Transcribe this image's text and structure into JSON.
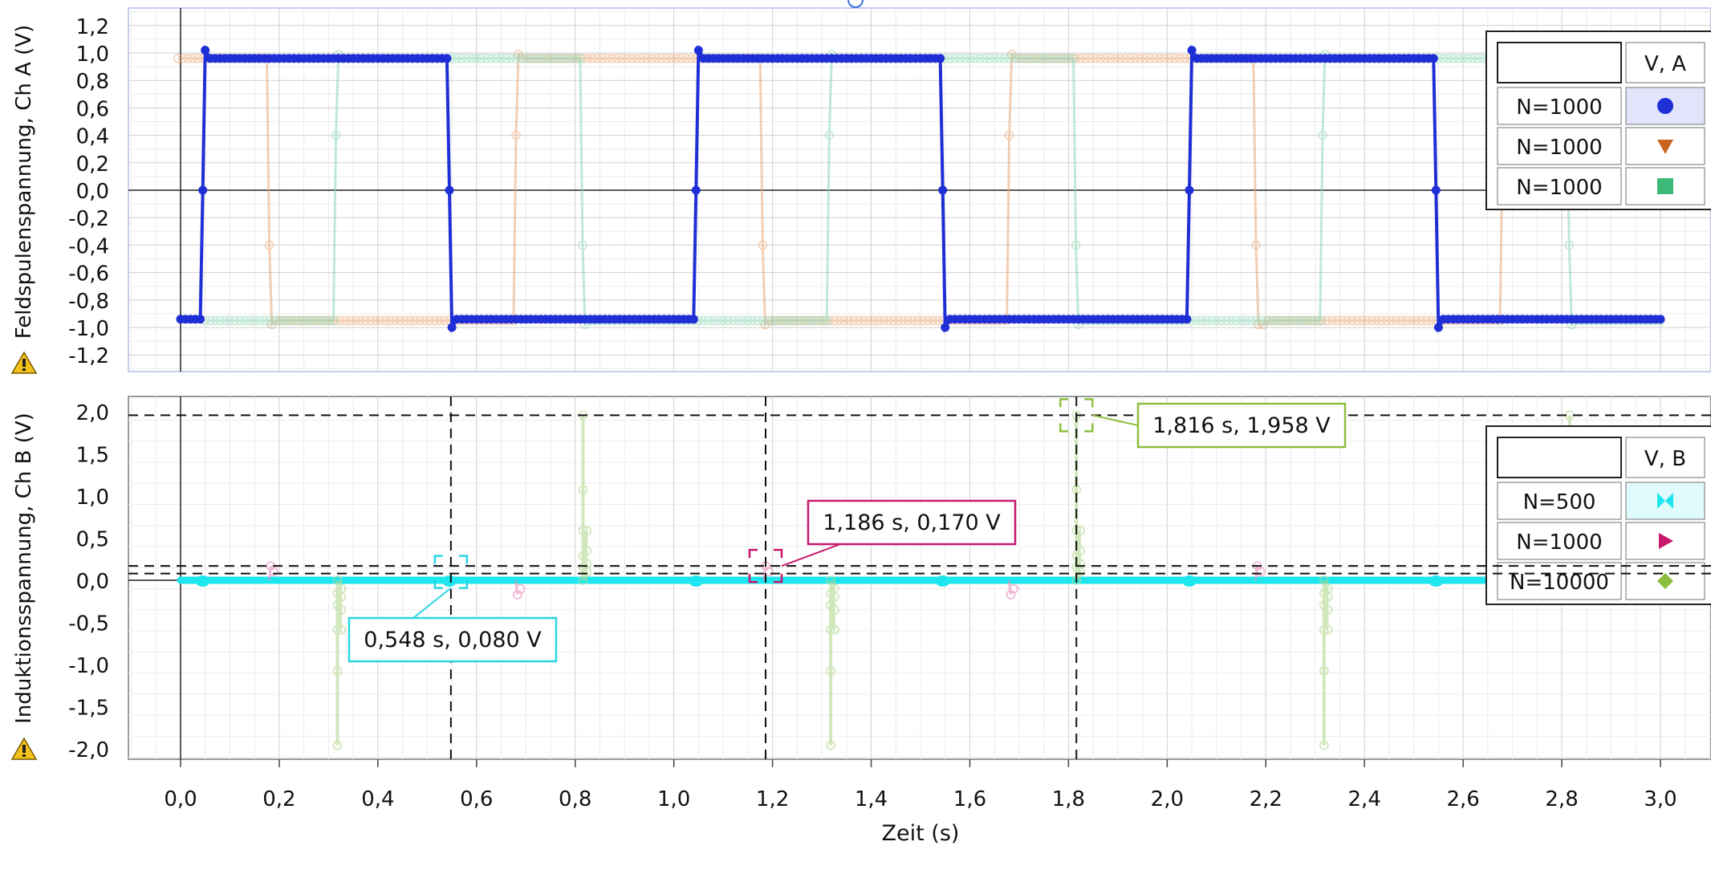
{
  "chart_data": [
    {
      "type": "line",
      "ylabel": "Feldspulenspannung, Ch A (V)",
      "yticks": [
        "1,2",
        "1,0",
        "0,8",
        "0,6",
        "0,4",
        "0,2",
        "0,0",
        "-0,2",
        "-0,4",
        "-0,6",
        "-0,8",
        "-1,0",
        "-1,2"
      ],
      "ylim": [
        -1.32,
        1.32
      ],
      "xlim": [
        -0.11,
        3.11
      ],
      "grid": true,
      "legend": {
        "placement": "top-right",
        "header": "V, A",
        "entries": [
          {
            "label": "N=1000",
            "marker": "circle",
            "color": "#1f2fd6"
          },
          {
            "label": "N=1000",
            "marker": "triangle-down",
            "color": "#c8641e"
          },
          {
            "label": "N=1000",
            "marker": "square",
            "color": "#3cb879"
          }
        ]
      },
      "series": [
        {
          "color": "#1f2fd6",
          "period": 1.0,
          "points_per_period": 100,
          "high": 0.96,
          "low": -0.94,
          "overshoot": 0.06,
          "rise_at": 0.045,
          "fall_at": 0.545,
          "x_range": [
            0,
            3.0
          ],
          "emphasis": "full"
        },
        {
          "color": "#e8a878",
          "period": 1.0,
          "points_per_period": 100,
          "high": 0.96,
          "low": -0.95,
          "overshoot": 0.03,
          "rise_at": 0.683,
          "fall_at": 0.183,
          "x_range": [
            -0.005,
            3.0
          ],
          "emphasis": "faded"
        },
        {
          "color": "#8ed7b4",
          "period": 1.0,
          "points_per_period": 100,
          "high": 0.96,
          "low": -0.95,
          "overshoot": 0.03,
          "rise_at": 0.315,
          "fall_at": 0.815,
          "x_range": [
            0.05,
            3.0
          ],
          "emphasis": "faded"
        }
      ]
    },
    {
      "type": "line",
      "xlabel": "Zeit (s)",
      "ylabel": "Induktionsspannung, Ch B (V)",
      "xticks": [
        "0,0",
        "0,2",
        "0,4",
        "0,6",
        "0,8",
        "1,0",
        "1,2",
        "1,4",
        "1,6",
        "1,8",
        "2,0",
        "2,2",
        "2,4",
        "2,6",
        "2,8",
        "3,0"
      ],
      "yticks": [
        "2,0",
        "1,5",
        "1,0",
        "0,5",
        "0,0",
        "-0,5",
        "-1,0",
        "-1,5",
        "-2,0"
      ],
      "ylim": [
        -2.1,
        2.1
      ],
      "xlim": [
        -0.11,
        3.11
      ],
      "grid": true,
      "legend": {
        "placement": "top-right",
        "header": "V, B",
        "entries": [
          {
            "label": "N=500",
            "marker": "bowtie",
            "color": "#1ee6ee"
          },
          {
            "label": "N=1000",
            "marker": "triangle-right",
            "color": "#c8186e"
          },
          {
            "label": "N=10000",
            "marker": "diamond",
            "color": "#8cbf3f"
          }
        ]
      },
      "series": [
        {
          "color": "#1ee6ee",
          "kind": "flat",
          "value": 0.0,
          "x_range": [
            0,
            2.98
          ],
          "bumps": [
            0.045,
            0.545,
            1.045,
            1.545,
            2.045,
            2.545
          ],
          "emphasis": "full"
        },
        {
          "color": "#e88cbc",
          "kind": "spikes",
          "value": 0.0,
          "spikes": [
            [
              0.183,
              0.17
            ],
            [
              0.683,
              -0.17
            ],
            [
              1.186,
              0.17
            ],
            [
              1.683,
              -0.17
            ],
            [
              2.183,
              0.17
            ]
          ],
          "emphasis": "faded"
        },
        {
          "color": "#b4d890",
          "kind": "spikes",
          "value": 0.0,
          "spikes": [
            [
              0.318,
              -1.958
            ],
            [
              0.816,
              1.958
            ],
            [
              1.318,
              -1.958
            ],
            [
              1.816,
              1.958
            ],
            [
              2.318,
              -1.958
            ],
            [
              2.816,
              1.958
            ]
          ],
          "emphasis": "faded"
        }
      ],
      "annotations": [
        {
          "text": "0,548 s, 0,080 V",
          "x": 0.548,
          "y": 0.08,
          "color": "#2ad6e0"
        },
        {
          "text": "1,186 s, 0,170 V",
          "x": 1.186,
          "y": 0.17,
          "color": "#c8186e"
        },
        {
          "text": "1,816 s, 1,958 V",
          "x": 1.816,
          "y": 1.958,
          "color": "#8cbf3f"
        }
      ]
    }
  ]
}
